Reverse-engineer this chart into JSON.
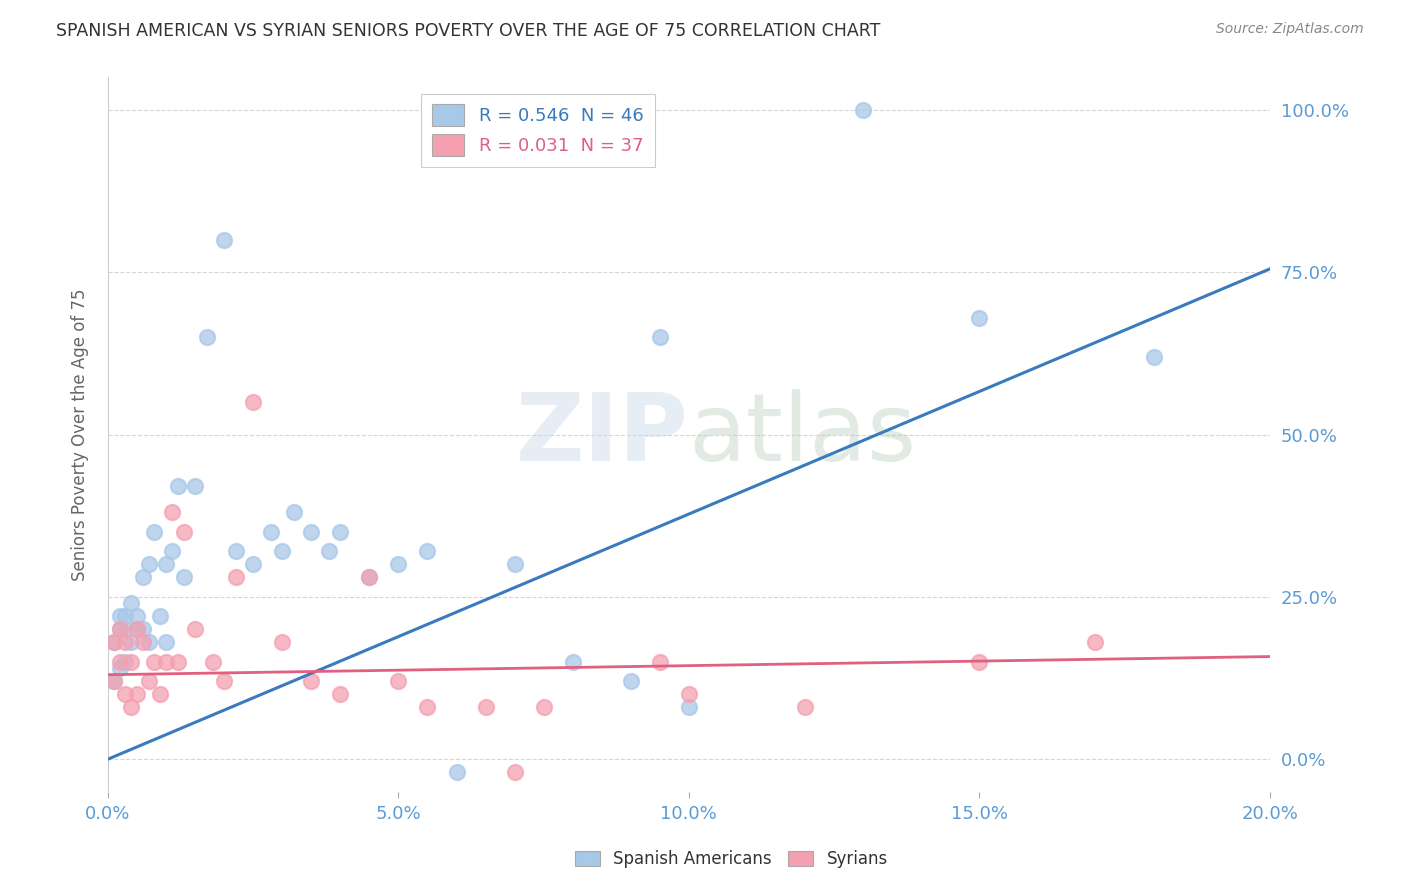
{
  "title": "SPANISH AMERICAN VS SYRIAN SENIORS POVERTY OVER THE AGE OF 75 CORRELATION CHART",
  "source": "Source: ZipAtlas.com",
  "ylabel": "Seniors Poverty Over the Age of 75",
  "xlabel_ticks": [
    "0.0%",
    "5.0%",
    "10.0%",
    "15.0%",
    "20.0%"
  ],
  "ylabel_ticks": [
    "0.0%",
    "25.0%",
    "50.0%",
    "75.0%",
    "100.0%"
  ],
  "xlim": [
    0.0,
    0.2
  ],
  "ylim": [
    -0.05,
    1.05
  ],
  "blue_R": 0.546,
  "blue_N": 46,
  "pink_R": 0.031,
  "pink_N": 37,
  "blue_color": "#a8c8e8",
  "pink_color": "#f4a0b0",
  "blue_line_color": "#3a7abf",
  "pink_line_color": "#e06080",
  "watermark_zip": "ZIP",
  "watermark_atlas": "atlas",
  "legend_label_blue": "Spanish Americans",
  "legend_label_pink": "Syrians",
  "blue_x": [
    0.001,
    0.001,
    0.002,
    0.002,
    0.002,
    0.003,
    0.003,
    0.003,
    0.004,
    0.004,
    0.005,
    0.005,
    0.006,
    0.006,
    0.007,
    0.007,
    0.008,
    0.009,
    0.01,
    0.01,
    0.011,
    0.012,
    0.013,
    0.015,
    0.017,
    0.02,
    0.022,
    0.025,
    0.028,
    0.03,
    0.032,
    0.035,
    0.038,
    0.04,
    0.045,
    0.05,
    0.055,
    0.06,
    0.07,
    0.08,
    0.09,
    0.095,
    0.1,
    0.13,
    0.15,
    0.18
  ],
  "blue_y": [
    0.12,
    0.18,
    0.14,
    0.2,
    0.22,
    0.15,
    0.2,
    0.22,
    0.18,
    0.24,
    0.2,
    0.22,
    0.2,
    0.28,
    0.18,
    0.3,
    0.35,
    0.22,
    0.3,
    0.18,
    0.32,
    0.42,
    0.28,
    0.42,
    0.65,
    0.8,
    0.32,
    0.3,
    0.35,
    0.32,
    0.38,
    0.35,
    0.32,
    0.35,
    0.28,
    0.3,
    0.32,
    -0.02,
    0.3,
    0.15,
    0.12,
    0.65,
    0.08,
    1.0,
    0.68,
    0.62
  ],
  "pink_x": [
    0.001,
    0.001,
    0.002,
    0.002,
    0.003,
    0.003,
    0.004,
    0.004,
    0.005,
    0.005,
    0.006,
    0.007,
    0.008,
    0.009,
    0.01,
    0.011,
    0.012,
    0.013,
    0.015,
    0.018,
    0.02,
    0.022,
    0.025,
    0.03,
    0.035,
    0.04,
    0.045,
    0.05,
    0.055,
    0.065,
    0.07,
    0.075,
    0.095,
    0.1,
    0.12,
    0.15,
    0.17
  ],
  "pink_y": [
    0.12,
    0.18,
    0.15,
    0.2,
    0.1,
    0.18,
    0.08,
    0.15,
    0.1,
    0.2,
    0.18,
    0.12,
    0.15,
    0.1,
    0.15,
    0.38,
    0.15,
    0.35,
    0.2,
    0.15,
    0.12,
    0.28,
    0.55,
    0.18,
    0.12,
    0.1,
    0.28,
    0.12,
    0.08,
    0.08,
    -0.02,
    0.08,
    0.15,
    0.1,
    0.08,
    0.15,
    0.18
  ],
  "blue_trendline": [
    0.0,
    0.755
  ],
  "pink_trendline": [
    0.13,
    0.158
  ]
}
